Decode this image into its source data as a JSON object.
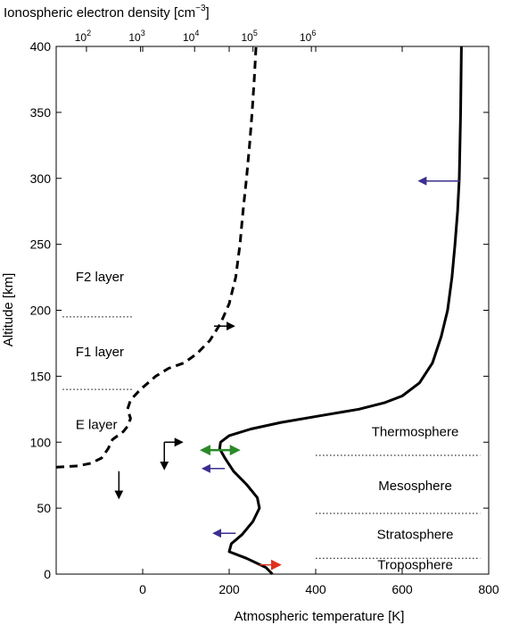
{
  "chart_data": {
    "type": "line",
    "title": "",
    "xlabel": "Atmospheric temperature [K]",
    "ylabel": "Altitude [km]",
    "top_xlabel_main": "Ionospheric electron density [cm",
    "top_xlabel_exp": "−3",
    "top_xlabel_close": "]",
    "xlim": [
      -200,
      800
    ],
    "ylim": [
      0,
      400
    ],
    "x_ticks": [
      0,
      200,
      400,
      600,
      800
    ],
    "x_tick_labels": [
      "0",
      "200",
      "400",
      "600",
      "800"
    ],
    "y_ticks": [
      0,
      50,
      100,
      150,
      200,
      250,
      300,
      350,
      400
    ],
    "y_tick_labels": [
      "0",
      "50",
      "100",
      "150",
      "200",
      "250",
      "300",
      "350",
      "400"
    ],
    "top_ticks": [
      {
        "base": "10",
        "exp": "2",
        "at_temperature": -130
      },
      {
        "base": "10",
        "exp": "3",
        "at_temperature": -5
      },
      {
        "base": "10",
        "exp": "4",
        "at_temperature": 120
      },
      {
        "base": "10",
        "exp": "5",
        "at_temperature": 255
      },
      {
        "base": "10",
        "exp": "6",
        "at_temperature": 390
      }
    ],
    "grid": false,
    "series": [
      {
        "style": "solid",
        "color": "#000000",
        "points": [
          [
            300,
            0
          ],
          [
            285,
            5
          ],
          [
            240,
            12
          ],
          [
            200,
            17
          ],
          [
            205,
            23
          ],
          [
            230,
            30
          ],
          [
            255,
            40
          ],
          [
            270,
            50
          ],
          [
            265,
            58
          ],
          [
            240,
            68
          ],
          [
            210,
            78
          ],
          [
            190,
            88
          ],
          [
            178,
            95
          ],
          [
            180,
            100
          ],
          [
            200,
            105
          ],
          [
            250,
            110
          ],
          [
            320,
            115
          ],
          [
            410,
            120
          ],
          [
            500,
            125
          ],
          [
            560,
            130
          ],
          [
            600,
            135
          ],
          [
            640,
            145
          ],
          [
            670,
            160
          ],
          [
            690,
            180
          ],
          [
            705,
            200
          ],
          [
            715,
            225
          ],
          [
            722,
            250
          ],
          [
            728,
            275
          ],
          [
            732,
            300
          ],
          [
            735,
            350
          ],
          [
            737,
            400
          ]
        ]
      },
      {
        "style": "dashed",
        "color": "#000000",
        "points": [
          [
            -200,
            81
          ],
          [
            -150,
            82
          ],
          [
            -120,
            84
          ],
          [
            -95,
            88
          ],
          [
            -80,
            95
          ],
          [
            -70,
            102
          ],
          [
            -45,
            108
          ],
          [
            -35,
            112
          ],
          [
            -28,
            118
          ],
          [
            -35,
            125
          ],
          [
            -28,
            132
          ],
          [
            -5,
            140
          ],
          [
            30,
            150
          ],
          [
            60,
            156
          ],
          [
            95,
            160
          ],
          [
            125,
            167
          ],
          [
            155,
            177
          ],
          [
            180,
            190
          ],
          [
            200,
            205
          ],
          [
            215,
            225
          ],
          [
            225,
            250
          ],
          [
            232,
            275
          ],
          [
            240,
            300
          ],
          [
            247,
            325
          ],
          [
            253,
            350
          ],
          [
            258,
            375
          ],
          [
            262,
            400
          ]
        ]
      }
    ],
    "regions": [
      {
        "label": "Thermosphere",
        "label_x": 630,
        "label_y": 108,
        "boundary_y": 90
      },
      {
        "label": "Mesosphere",
        "label_x": 630,
        "label_y": 67,
        "boundary_y": 46
      },
      {
        "label": "Stratosphere",
        "label_x": 630,
        "label_y": 30,
        "boundary_y": 12
      },
      {
        "label": "Troposphere",
        "label_x": 630,
        "label_y": 7,
        "boundary_y": null
      }
    ],
    "layers": [
      {
        "label": "F2 layer",
        "label_x": -155,
        "label_y": 222,
        "line_y": 195
      },
      {
        "label": "F1 layer",
        "label_x": -155,
        "label_y": 165,
        "line_y": 140
      },
      {
        "label": "E layer",
        "label_x": -155,
        "label_y": 110,
        "line_y": null
      }
    ],
    "arrows": [
      {
        "color": "#3a2f8f",
        "from": [
          735,
          298
        ],
        "to": [
          640,
          298
        ],
        "heads": "end"
      },
      {
        "color": "#3a2f8f",
        "from": [
          190,
          80
        ],
        "to": [
          140,
          80
        ],
        "heads": "end"
      },
      {
        "color": "#3a2f8f",
        "from": [
          215,
          31
        ],
        "to": [
          165,
          31
        ],
        "heads": "end"
      },
      {
        "color": "#2a8a2a",
        "from": [
          138,
          94
        ],
        "to": [
          220,
          94
        ],
        "heads": "both"
      },
      {
        "color": "#e0301e",
        "from": [
          270,
          7
        ],
        "to": [
          315,
          7
        ],
        "heads": "end"
      },
      {
        "color": "#000000",
        "from": [
          165,
          188
        ],
        "to": [
          210,
          188
        ],
        "heads": "end"
      },
      {
        "color": "#000000",
        "from": [
          50,
          100
        ],
        "to": [
          90,
          100
        ],
        "heads": "end"
      },
      {
        "color": "#000000",
        "from": [
          50,
          100
        ],
        "to": [
          50,
          80
        ],
        "heads": "end"
      },
      {
        "color": "#000000",
        "from": [
          -55,
          78
        ],
        "to": [
          -55,
          58
        ],
        "heads": "end"
      }
    ]
  }
}
